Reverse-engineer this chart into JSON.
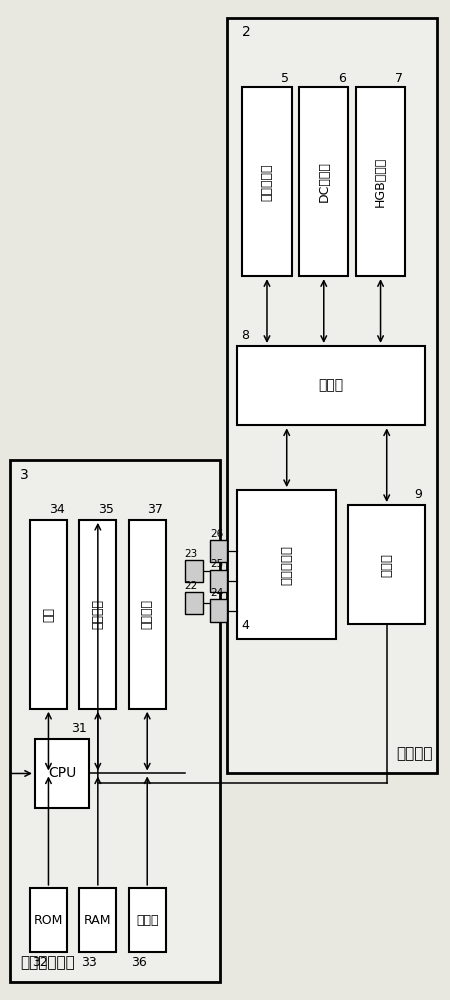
{
  "bg_color": "#e8e8e0",
  "box_fc": "#ffffff",
  "box_ec": "#000000",
  "fig_width": 4.5,
  "fig_height": 10.0,
  "unit2_label": "测定单元",
  "unit2_num": "2",
  "unit3_label": "数据处理单元",
  "unit3_num": "3",
  "boxes_unit2_top": [
    {
      "label": "光学测定部",
      "num": "5"
    },
    {
      "label": "DC测定部",
      "num": "6"
    },
    {
      "label": "HGB测定部",
      "num": "7"
    }
  ],
  "box_control": {
    "label": "控制部",
    "num": "8"
  },
  "box_sample": {
    "label": "样品供给部",
    "num": "4"
  },
  "box_comm": {
    "label": "通信部",
    "num": "9"
  },
  "boxes_unit3_top": [
    {
      "label": "硬盘",
      "num": "34"
    },
    {
      "label": "通信接口",
      "num": "35"
    },
    {
      "label": "显示装置",
      "num": "37"
    }
  ],
  "box_cpu": {
    "label": "CPU",
    "num": "31"
  },
  "boxes_unit3_bot": [
    {
      "label": "ROM",
      "num": "32"
    },
    {
      "label": "RAM",
      "num": "33"
    },
    {
      "label": "输入部",
      "num": "36"
    }
  ]
}
